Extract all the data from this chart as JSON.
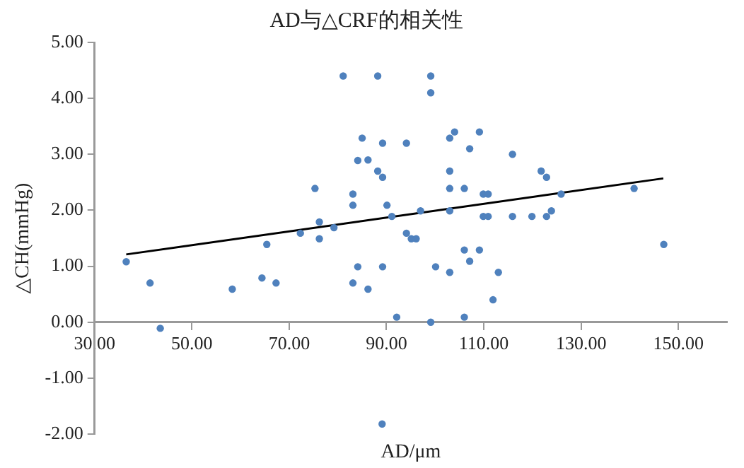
{
  "chart_data": {
    "type": "scatter",
    "title": "AD与△CRF的相关性",
    "xlabel": "AD/μm",
    "ylabel": "△CH(mmHg)",
    "xlim": [
      30,
      160
    ],
    "xticks": [
      {
        "value": 30,
        "label": "30.00"
      },
      {
        "value": 50,
        "label": "50.00"
      },
      {
        "value": 70,
        "label": "70.00"
      },
      {
        "value": 90,
        "label": "90.00"
      },
      {
        "value": 110,
        "label": "110.00"
      },
      {
        "value": 130,
        "label": "130.00"
      },
      {
        "value": 150,
        "label": "150.00"
      }
    ],
    "ylim": [
      -2,
      5
    ],
    "yticks": [
      {
        "value": -2,
        "label": "-2.00"
      },
      {
        "value": -1,
        "label": "-1.00"
      },
      {
        "value": 0,
        "label": "0.00"
      },
      {
        "value": 1,
        "label": "1.00"
      },
      {
        "value": 2,
        "label": "2.00"
      },
      {
        "value": 3,
        "label": "3.00"
      },
      {
        "value": 4,
        "label": "4.00"
      },
      {
        "value": 5,
        "label": "5.00"
      }
    ],
    "grid": false,
    "legend": false,
    "marker": "circle",
    "series": [
      {
        "color": "#4f81bd",
        "x": [
          36.5,
          41.4,
          43.5,
          58.3,
          64.4,
          65.4,
          67.3,
          72.3,
          75.3,
          76.2,
          76.2,
          79.2,
          81.1,
          83.1,
          83.1,
          83.1,
          84.1,
          84.1,
          85.0,
          88.2,
          99.1,
          99.1,
          89.2,
          94.1,
          86.2,
          88.2,
          89.2,
          90.1,
          91.1,
          97.0,
          94.1,
          95.1,
          96.1,
          89.2,
          86.2,
          92.1,
          99.1,
          89.1,
          100.1,
          103.0,
          103.0,
          104.0,
          109.1,
          107.1,
          103.0,
          103.0,
          106.0,
          103.0,
          109.9,
          110.9,
          109.9,
          110.9,
          106.0,
          109.1,
          107.1,
          113.0,
          111.9,
          106.0,
          115.9,
          121.8,
          122.9,
          125.9,
          140.9,
          147.0,
          115.9,
          119.9,
          122.9,
          123.9
        ],
        "values": [
          1.08,
          0.7,
          -0.11,
          0.59,
          0.79,
          1.39,
          0.7,
          1.59,
          2.39,
          1.79,
          1.49,
          1.69,
          4.4,
          2.29,
          2.09,
          0.7,
          0.99,
          2.89,
          3.29,
          4.4,
          4.4,
          4.1,
          3.2,
          3.2,
          2.9,
          2.7,
          2.59,
          2.09,
          1.89,
          1.99,
          1.59,
          1.49,
          1.49,
          0.99,
          0.59,
          0.09,
          0.0,
          -1.82,
          0.99,
          0.89,
          3.29,
          3.4,
          3.4,
          3.1,
          2.7,
          2.39,
          2.39,
          1.99,
          2.29,
          2.29,
          1.89,
          1.89,
          1.29,
          1.29,
          1.09,
          0.89,
          0.4,
          0.09,
          3.0,
          2.7,
          2.59,
          2.29,
          2.39,
          1.39,
          1.89,
          1.89,
          1.89,
          1.99
        ]
      },
      {
        "type": "line",
        "color": "#000000",
        "marker": "none",
        "line_style": "solid",
        "x": [
          36.5,
          146.9
        ],
        "values": [
          1.21,
          2.57
        ]
      }
    ]
  }
}
